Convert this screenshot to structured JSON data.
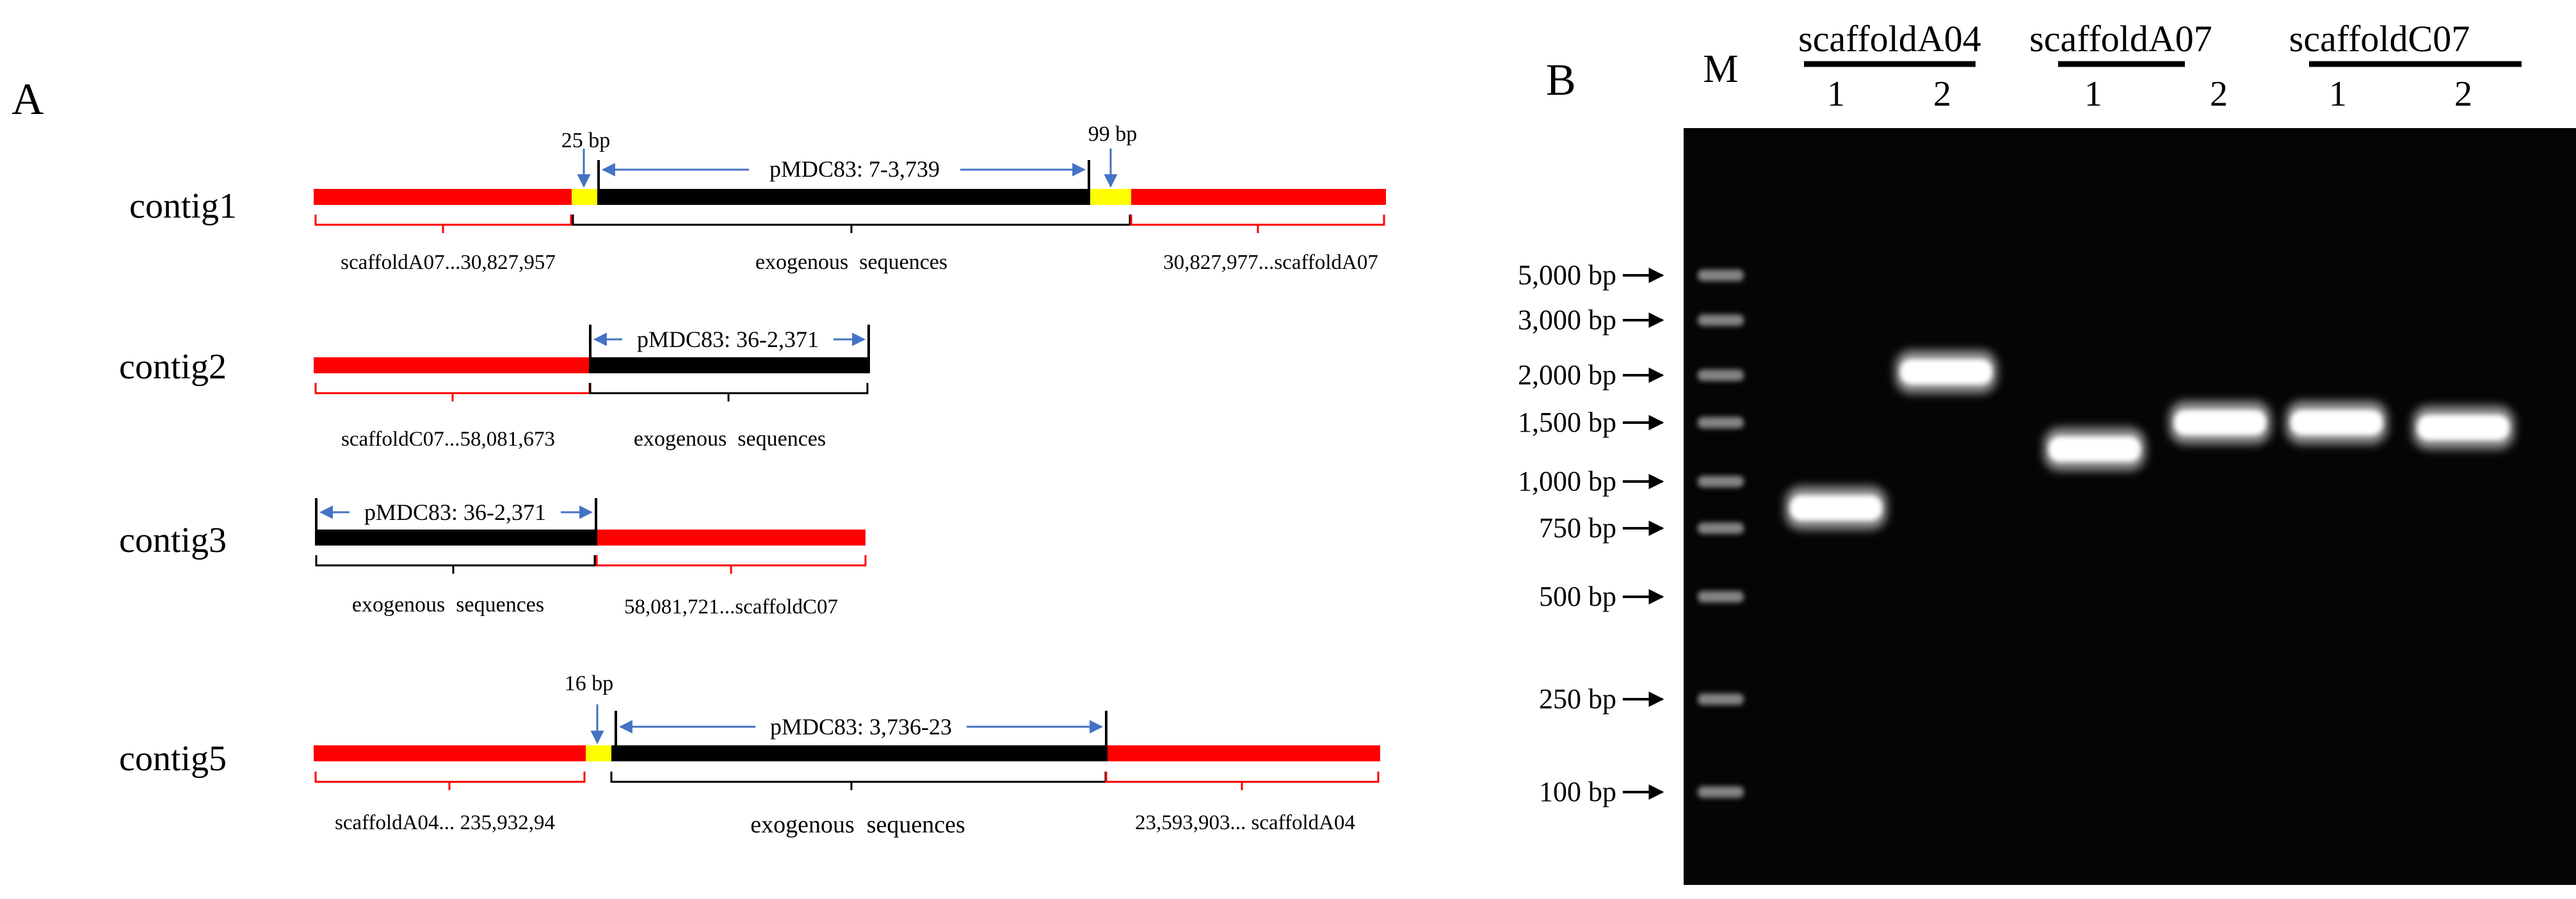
{
  "panels": {
    "a_label": "A",
    "b_label": "B"
  },
  "colors": {
    "scaffold": "#ff0000",
    "junction": "#ffff00",
    "exogenous": "#000000",
    "arrow": "#4472c4",
    "bracket_red": "#ff0000",
    "bracket_black": "#000000",
    "gel_background": "#050505",
    "band": "#ffffff"
  },
  "contigs": [
    {
      "name": "contig1",
      "junctions": [
        "25 bp",
        "99 bp"
      ],
      "vector_span": "pMDC83: 7-3,739",
      "vector_direction": "right",
      "left_label": "scaffoldA07...30,827,957",
      "middle_label": "exogenous  sequences",
      "right_label": "30,827,977...scaffoldA07"
    },
    {
      "name": "contig2",
      "junctions": [],
      "vector_span": "pMDC83: 36-2,371",
      "vector_direction": "right",
      "left_label": "scaffoldC07...58,081,673",
      "middle_label": "exogenous  sequences",
      "right_label": ""
    },
    {
      "name": "contig3",
      "junctions": [],
      "vector_span": "pMDC83: 36-2,371",
      "vector_direction": "left",
      "left_label": "exogenous  sequences",
      "middle_label": "",
      "right_label": "58,081,721...scaffoldC07"
    },
    {
      "name": "contig5",
      "junctions": [
        "16 bp"
      ],
      "vector_span": "pMDC83: 3,736-23",
      "vector_direction": "left",
      "left_label": "scaffoldA04... 235,932,94",
      "middle_label": "exogenous  sequences",
      "right_label": "23,593,903... scaffoldA04"
    }
  ],
  "gel": {
    "marker_lane": "M",
    "groups": [
      {
        "name": "scaffoldA04",
        "lanes": [
          "1",
          "2"
        ]
      },
      {
        "name": "scaffoldA07",
        "lanes": [
          "1",
          "2"
        ]
      },
      {
        "name": "scaffoldC07",
        "lanes": [
          "1",
          "2"
        ]
      }
    ],
    "ladder": [
      "5,000 bp",
      "3,000 bp",
      "2,000 bp",
      "1,500 bp",
      "1,000 bp",
      "750 bp",
      "500 bp",
      "250 bp",
      "100 bp"
    ],
    "ladder_bp": [
      5000,
      3000,
      2000,
      1500,
      1000,
      750,
      500,
      250,
      100
    ],
    "sample_bands_bp": [
      850,
      2050,
      1250,
      1500,
      1500,
      1450
    ]
  }
}
